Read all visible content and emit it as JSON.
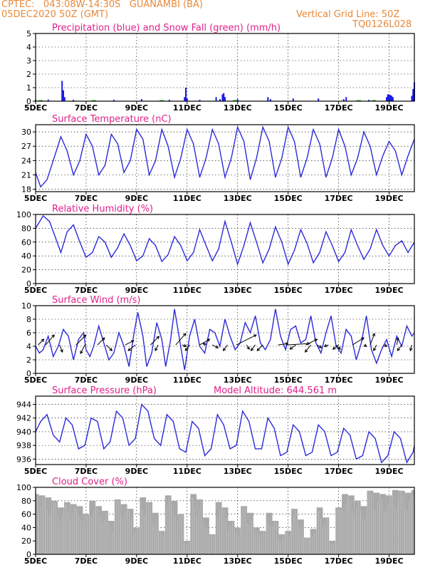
{
  "header": {
    "left1": "CPTEC:   043:08W-14:30S   GUANAMBI (BA)",
    "left2": "05DEC2020 50Z (GMT)",
    "right1": "Vertical Grid Line: 50Z",
    "right2": "TQ0126L028"
  },
  "chart_data": [
    {
      "type": "bar",
      "title": "Precipitation (blue) and Snow Fall (green) (mm/h)",
      "ylim": [
        0,
        5
      ],
      "yticks": [
        0,
        1,
        2,
        3,
        4,
        5
      ],
      "xticks": [
        "5DEC",
        "7DEC",
        "9DEC",
        "11DEC",
        "13DEC",
        "15DEC",
        "17DEC",
        "19DEC"
      ],
      "colors": {
        "precip": "#1a1ae6",
        "snow": "#22b022"
      },
      "precip": [
        [
          0.95,
          0.3
        ],
        [
          5.0,
          0.1
        ],
        [
          5.5,
          0.12
        ],
        [
          6.05,
          1.5
        ],
        [
          6.1,
          0.8
        ],
        [
          6.15,
          0.3
        ],
        [
          6.5,
          0.1
        ],
        [
          8.1,
          0.1
        ],
        [
          9.2,
          0.15
        ],
        [
          10.3,
          0.1
        ],
        [
          10.9,
          0.3
        ],
        [
          10.95,
          1.0
        ],
        [
          11.0,
          0.2
        ],
        [
          11.5,
          0.1
        ],
        [
          12.15,
          0.3
        ],
        [
          12.3,
          0.15
        ],
        [
          12.4,
          0.5
        ],
        [
          12.45,
          0.6
        ],
        [
          12.5,
          0.3
        ],
        [
          13.0,
          0.15
        ],
        [
          14.2,
          0.3
        ],
        [
          14.3,
          0.15
        ],
        [
          15.2,
          0.2
        ],
        [
          16.2,
          0.2
        ],
        [
          17.2,
          0.15
        ],
        [
          17.3,
          0.3
        ],
        [
          18.2,
          0.1
        ],
        [
          18.9,
          0.3
        ],
        [
          18.95,
          0.5
        ],
        [
          19.0,
          0.5
        ],
        [
          19.05,
          0.45
        ],
        [
          19.1,
          0.4
        ],
        [
          19.15,
          0.3
        ],
        [
          19.9,
          0.4
        ],
        [
          19.95,
          0.9
        ],
        [
          20.0,
          1.4
        ]
      ],
      "snow": [
        [
          5.2,
          0.08
        ],
        [
          7.3,
          0.08
        ],
        [
          10.0,
          0.08
        ],
        [
          12.9,
          0.08
        ],
        [
          17.8,
          0.08
        ],
        [
          18.4,
          0.08
        ]
      ]
    },
    {
      "type": "line",
      "title": "Surface Temperature (nC)",
      "ylim": [
        17.5,
        31.5
      ],
      "yticks": [
        18,
        21,
        24,
        27,
        30
      ],
      "xticks": [
        "5DEC",
        "7DEC",
        "9DEC",
        "11DEC",
        "13DEC",
        "15DEC",
        "17DEC",
        "19DEC"
      ],
      "x": [
        5.0,
        5.2,
        5.45,
        5.7,
        6.0,
        6.25,
        6.5,
        6.75,
        7.0,
        7.25,
        7.5,
        7.75,
        8.0,
        8.25,
        8.5,
        8.75,
        9.0,
        9.25,
        9.5,
        9.75,
        10.0,
        10.25,
        10.5,
        10.75,
        11.0,
        11.25,
        11.5,
        11.75,
        12.0,
        12.25,
        12.5,
        12.75,
        13.0,
        13.25,
        13.5,
        13.75,
        14.0,
        14.25,
        14.5,
        14.75,
        15.0,
        15.25,
        15.5,
        15.75,
        16.0,
        16.25,
        16.5,
        16.75,
        17.0,
        17.25,
        17.5,
        17.75,
        18.0,
        18.25,
        18.5,
        18.75,
        19.0,
        19.25,
        19.5,
        19.75,
        20.0
      ],
      "y": [
        21.5,
        18.5,
        20.0,
        24.0,
        29.0,
        26.0,
        21.0,
        24.0,
        29.5,
        27.0,
        21.0,
        23.0,
        29.5,
        27.5,
        21.5,
        24.0,
        30.5,
        28.5,
        21.0,
        24.0,
        30.5,
        27.0,
        20.5,
        24.5,
        30.5,
        27.5,
        20.5,
        24.5,
        30.5,
        27.5,
        20.5,
        24.5,
        31.0,
        28.0,
        20.0,
        24.5,
        31.0,
        28.0,
        20.5,
        24.5,
        31.0,
        28.0,
        20.5,
        24.5,
        30.5,
        27.5,
        20.5,
        24.5,
        30.5,
        27.0,
        21.0,
        24.5,
        30.0,
        27.0,
        21.0,
        25.0,
        28.0,
        26.0,
        21.0,
        25.0,
        28.5
      ]
    },
    {
      "type": "line",
      "title": "Relative Humidity (%)",
      "ylim": [
        0,
        100
      ],
      "yticks": [
        0,
        20,
        40,
        60,
        80,
        100
      ],
      "xticks": [
        "5DEC",
        "7DEC",
        "9DEC",
        "11DEC",
        "13DEC",
        "15DEC",
        "17DEC",
        "19DEC"
      ],
      "x": [
        5.0,
        5.3,
        5.55,
        5.8,
        6.0,
        6.25,
        6.5,
        6.75,
        7.0,
        7.25,
        7.5,
        7.75,
        8.0,
        8.25,
        8.5,
        8.75,
        9.0,
        9.25,
        9.5,
        9.75,
        10.0,
        10.25,
        10.5,
        10.75,
        11.0,
        11.25,
        11.5,
        11.75,
        12.0,
        12.25,
        12.5,
        12.75,
        13.0,
        13.25,
        13.5,
        13.75,
        14.0,
        14.25,
        14.5,
        14.75,
        15.0,
        15.25,
        15.5,
        15.75,
        16.0,
        16.25,
        16.5,
        16.75,
        17.0,
        17.25,
        17.5,
        17.75,
        18.0,
        18.25,
        18.5,
        18.75,
        19.0,
        19.25,
        19.5,
        19.75,
        20.0
      ],
      "y": [
        80,
        98,
        90,
        65,
        45,
        75,
        85,
        60,
        38,
        45,
        68,
        60,
        38,
        52,
        72,
        55,
        33,
        40,
        65,
        55,
        32,
        42,
        68,
        55,
        33,
        45,
        78,
        55,
        33,
        50,
        90,
        60,
        28,
        55,
        88,
        60,
        30,
        50,
        82,
        60,
        28,
        48,
        78,
        58,
        30,
        45,
        75,
        55,
        32,
        45,
        78,
        55,
        35,
        50,
        78,
        55,
        40,
        55,
        62,
        45,
        60
      ]
    },
    {
      "type": "line",
      "title": "Surface Wind (m/s)",
      "ylim": [
        0,
        10
      ],
      "yticks": [
        0,
        2,
        4,
        6,
        8,
        10
      ],
      "xticks": [
        "5DEC",
        "7DEC",
        "9DEC",
        "11DEC",
        "13DEC",
        "15DEC",
        "17DEC",
        "19DEC"
      ],
      "x": [
        5.0,
        5.15,
        5.3,
        5.5,
        5.7,
        5.9,
        6.1,
        6.3,
        6.5,
        6.7,
        6.9,
        7.0,
        7.15,
        7.3,
        7.5,
        7.7,
        7.9,
        8.1,
        8.3,
        8.5,
        8.7,
        8.9,
        9.05,
        9.25,
        9.4,
        9.6,
        9.8,
        10.0,
        10.15,
        10.35,
        10.5,
        10.7,
        10.9,
        11.1,
        11.3,
        11.5,
        11.7,
        11.9,
        12.1,
        12.3,
        12.5,
        12.7,
        12.9,
        13.1,
        13.3,
        13.5,
        13.7,
        13.9,
        14.1,
        14.3,
        14.5,
        14.7,
        14.9,
        15.1,
        15.3,
        15.5,
        15.7,
        15.9,
        16.1,
        16.3,
        16.5,
        16.7,
        16.9,
        17.1,
        17.3,
        17.5,
        17.7,
        17.9,
        18.1,
        18.3,
        18.5,
        18.7,
        18.9,
        19.1,
        19.3,
        19.5,
        19.7,
        19.9,
        20.0
      ],
      "y": [
        4.0,
        3.0,
        3.5,
        5.5,
        2.5,
        4.0,
        6.5,
        5.5,
        2.0,
        5.0,
        6.0,
        3.5,
        2.5,
        4.0,
        7.0,
        4.5,
        2.0,
        3.0,
        6.0,
        4.0,
        1.0,
        6.0,
        9.0,
        5.5,
        1.0,
        3.0,
        7.5,
        5.0,
        1.0,
        5.0,
        9.5,
        5.0,
        0.5,
        5.5,
        8.0,
        4.0,
        3.0,
        6.5,
        6.0,
        4.0,
        8.0,
        5.5,
        3.5,
        4.5,
        7.5,
        6.0,
        8.5,
        4.5,
        3.5,
        5.0,
        9.5,
        5.5,
        3.5,
        6.5,
        7.0,
        4.5,
        5.0,
        8.5,
        4.5,
        3.0,
        6.0,
        8.5,
        4.0,
        3.0,
        6.5,
        5.5,
        2.0,
        4.5,
        8.5,
        3.5,
        1.5,
        3.5,
        5.0,
        2.5,
        5.5,
        4.0,
        7.0,
        5.5,
        6.0
      ],
      "barbs": [
        {
          "t": 5.1,
          "u": 2.0,
          "v": 2.0
        },
        {
          "t": 5.4,
          "u": 3.0,
          "v": 3.5
        },
        {
          "t": 5.95,
          "u": 1.0,
          "v": -2.5
        },
        {
          "t": 6.6,
          "u": 3.5,
          "v": 3.5
        },
        {
          "t": 6.95,
          "u": -1.5,
          "v": -3.0
        },
        {
          "t": 7.45,
          "u": 2.5,
          "v": 2.5
        },
        {
          "t": 7.8,
          "u": 2.0,
          "v": -2.0
        },
        {
          "t": 8.55,
          "u": 3.0,
          "v": 1.5
        },
        {
          "t": 8.95,
          "u": -2.5,
          "v": -2.0
        },
        {
          "t": 9.55,
          "u": 3.0,
          "v": 3.0
        },
        {
          "t": 9.85,
          "u": -1.0,
          "v": -2.0
        },
        {
          "t": 10.55,
          "u": 3.5,
          "v": 4.0
        },
        {
          "t": 10.8,
          "u": 1.5,
          "v": -0.5
        },
        {
          "t": 11.1,
          "u": -1.5,
          "v": -2.0
        },
        {
          "t": 11.5,
          "u": 3.5,
          "v": 2.0
        },
        {
          "t": 11.75,
          "u": -1.0,
          "v": 0.5
        },
        {
          "t": 12.0,
          "u": 2.0,
          "v": -1.0
        },
        {
          "t": 12.6,
          "u": -1.5,
          "v": -2.0
        },
        {
          "t": 12.95,
          "u": 7.0,
          "v": 3.5
        },
        {
          "t": 13.35,
          "u": 1.0,
          "v": -1.5
        },
        {
          "t": 13.7,
          "u": -1.5,
          "v": -2.0
        },
        {
          "t": 14.0,
          "u": -2.0,
          "v": -2.0
        },
        {
          "t": 14.6,
          "u": 3.5,
          "v": 0.5
        },
        {
          "t": 14.95,
          "u": 8.0,
          "v": 0.5
        },
        {
          "t": 15.3,
          "u": -2.0,
          "v": -1.5
        },
        {
          "t": 15.7,
          "u": 4.0,
          "v": 2.0
        },
        {
          "t": 15.9,
          "u": -2.0,
          "v": -2.5
        },
        {
          "t": 16.15,
          "u": 1.5,
          "v": -1.0
        },
        {
          "t": 16.6,
          "u": -1.5,
          "v": -0.5
        },
        {
          "t": 16.9,
          "u": 1.5,
          "v": -1.5
        },
        {
          "t": 17.0,
          "u": -2.0,
          "v": -1.5
        },
        {
          "t": 17.55,
          "u": 4.0,
          "v": 2.5
        },
        {
          "t": 18.0,
          "u": 1.0,
          "v": -0.5
        },
        {
          "t": 18.25,
          "u": 1.5,
          "v": 4.0
        },
        {
          "t": 18.5,
          "u": -1.0,
          "v": -2.0
        },
        {
          "t": 18.8,
          "u": 1.0,
          "v": -0.5
        },
        {
          "t": 19.3,
          "u": 0.5,
          "v": 2.5
        },
        {
          "t": 19.5,
          "u": -1.5,
          "v": -2.0
        },
        {
          "t": 19.9,
          "u": -0.5,
          "v": -2.0
        }
      ]
    },
    {
      "type": "line",
      "title": "Surface Pressure (hPa)",
      "annotation": "Model Altitude: 644.561  m",
      "ylim": [
        935.2,
        945.2
      ],
      "yticks": [
        936,
        938,
        940,
        942,
        944
      ],
      "xticks": [
        "5DEC",
        "7DEC",
        "9DEC",
        "11DEC",
        "13DEC",
        "15DEC",
        "17DEC",
        "19DEC"
      ],
      "x": [
        5.0,
        5.2,
        5.45,
        5.7,
        5.95,
        6.2,
        6.45,
        6.7,
        6.95,
        7.2,
        7.45,
        7.7,
        7.95,
        8.2,
        8.45,
        8.7,
        8.95,
        9.2,
        9.45,
        9.7,
        9.95,
        10.2,
        10.45,
        10.7,
        10.95,
        11.2,
        11.45,
        11.7,
        11.95,
        12.2,
        12.45,
        12.7,
        12.95,
        13.2,
        13.45,
        13.7,
        13.95,
        14.2,
        14.45,
        14.7,
        14.95,
        15.2,
        15.45,
        15.7,
        15.95,
        16.2,
        16.45,
        16.7,
        16.95,
        17.2,
        17.45,
        17.7,
        17.95,
        18.2,
        18.45,
        18.7,
        18.95,
        19.2,
        19.45,
        19.7,
        19.95,
        20.0
      ],
      "y": [
        940.0,
        941.5,
        942.5,
        939.5,
        938.5,
        942.0,
        941.0,
        937.5,
        938.0,
        942.0,
        941.5,
        937.5,
        938.5,
        943.0,
        942.0,
        938.0,
        939.0,
        944.0,
        943.0,
        939.0,
        938.0,
        942.5,
        941.5,
        937.5,
        937.0,
        941.5,
        940.5,
        936.5,
        937.5,
        942.5,
        941.0,
        937.5,
        938.0,
        943.0,
        941.5,
        937.5,
        937.5,
        942.0,
        940.5,
        936.5,
        937.0,
        941.0,
        940.0,
        936.5,
        937.0,
        941.0,
        940.0,
        936.5,
        937.0,
        940.5,
        939.5,
        936.0,
        936.5,
        940.0,
        939.0,
        935.5,
        936.5,
        940.0,
        939.0,
        935.5,
        937.0,
        938.0
      ]
    },
    {
      "type": "bar",
      "title": "Cloud Cover (%)",
      "ylim": [
        0,
        100
      ],
      "yticks": [
        0,
        20,
        40,
        60,
        80,
        100
      ],
      "xticks": [
        "5DEC",
        "7DEC",
        "9DEC",
        "11DEC",
        "13DEC",
        "15DEC",
        "17DEC",
        "19DEC"
      ],
      "color": "#a9a9a9",
      "x": [
        5.0,
        5.25,
        5.5,
        5.75,
        6.0,
        6.25,
        6.5,
        6.75,
        7.0,
        7.25,
        7.5,
        7.75,
        8.0,
        8.25,
        8.5,
        8.75,
        9.0,
        9.25,
        9.5,
        9.75,
        10.0,
        10.25,
        10.5,
        10.75,
        11.0,
        11.25,
        11.5,
        11.75,
        12.0,
        12.25,
        12.5,
        12.75,
        13.0,
        13.25,
        13.5,
        13.75,
        14.0,
        14.25,
        14.5,
        14.75,
        15.0,
        15.25,
        15.5,
        15.75,
        16.0,
        16.25,
        16.5,
        16.75,
        17.0,
        17.25,
        17.5,
        17.75,
        18.0,
        18.25,
        18.5,
        18.75,
        19.0,
        19.25,
        19.5,
        19.75,
        20.0
      ],
      "y": [
        90,
        88,
        85,
        80,
        70,
        78,
        75,
        72,
        60,
        80,
        72,
        65,
        50,
        82,
        75,
        68,
        40,
        85,
        78,
        62,
        35,
        88,
        80,
        60,
        20,
        90,
        82,
        55,
        30,
        78,
        70,
        50,
        40,
        72,
        62,
        40,
        35,
        62,
        50,
        30,
        35,
        68,
        52,
        25,
        38,
        70,
        55,
        20,
        70,
        90,
        88,
        80,
        72,
        95,
        92,
        90,
        88,
        96,
        95,
        92,
        96
      ]
    }
  ]
}
